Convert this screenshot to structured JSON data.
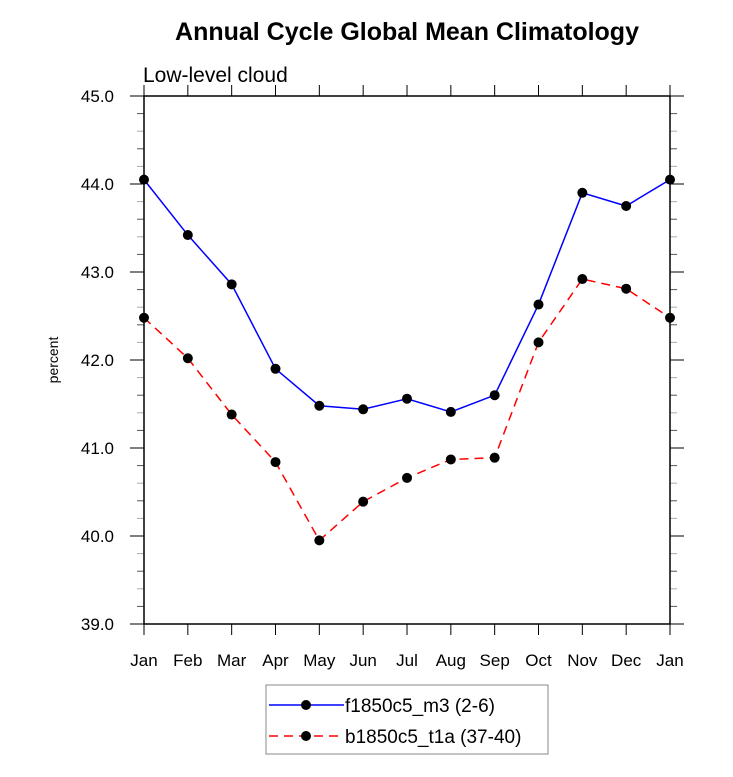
{
  "chart_data": {
    "type": "line",
    "title": "Annual Cycle Global Mean Climatology",
    "subtitle": "Low-level cloud",
    "xlabel": "",
    "ylabel": "percent",
    "categories": [
      "Jan",
      "Feb",
      "Mar",
      "Apr",
      "May",
      "Jun",
      "Jul",
      "Aug",
      "Sep",
      "Oct",
      "Nov",
      "Dec",
      "Jan"
    ],
    "ylim": [
      39.0,
      45.0
    ],
    "yticks": [
      "39.0",
      "40.0",
      "41.0",
      "42.0",
      "43.0",
      "44.0",
      "45.0"
    ],
    "ytick_values": [
      39.0,
      40.0,
      41.0,
      42.0,
      43.0,
      44.0,
      45.0
    ],
    "y_minor_step": 0.2,
    "grid": false,
    "legend_position": "bottom-center",
    "series": [
      {
        "name": "f1850c5_m3 (2-6)",
        "color": "#0000ff",
        "style": "solid",
        "marker": "filled-circle",
        "values": [
          44.05,
          43.42,
          42.86,
          41.9,
          41.48,
          41.44,
          41.56,
          41.41,
          41.6,
          42.63,
          43.9,
          43.75,
          44.05
        ]
      },
      {
        "name": "b1850c5_t1a (37-40)",
        "color": "#ff0000",
        "style": "dashed",
        "marker": "filled-circle",
        "values": [
          42.48,
          42.02,
          41.38,
          40.84,
          39.95,
          40.39,
          40.66,
          40.87,
          40.89,
          42.2,
          42.92,
          42.81,
          42.48
        ]
      }
    ]
  }
}
